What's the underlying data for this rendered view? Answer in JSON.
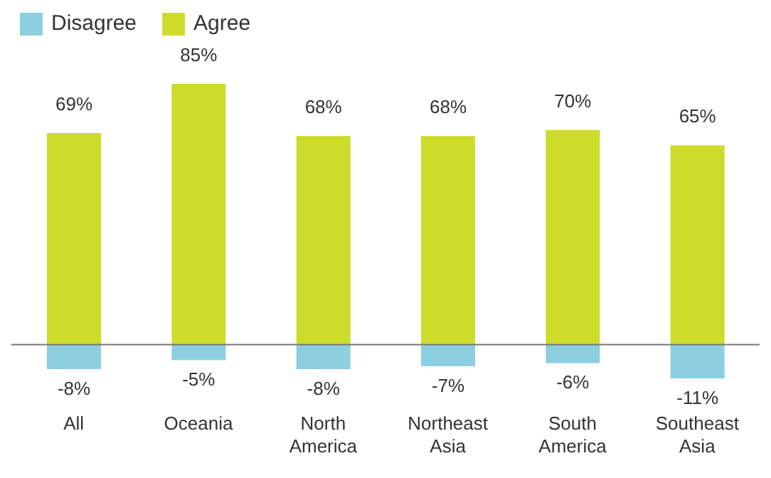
{
  "chart_data": {
    "type": "bar",
    "stacked": true,
    "legend": "top left",
    "categories": [
      "All",
      "Oceania",
      "North America",
      "Northeast Asia",
      "South America",
      "Southeast Asia"
    ],
    "series": [
      {
        "name": "Disagree",
        "color": "#8ccfe0",
        "values": [
          -8,
          -5,
          -8,
          -7,
          -6,
          -11
        ],
        "value_labels": [
          "-8%",
          "-5%",
          "-8%",
          "-7%",
          "-6%",
          "-11%"
        ]
      },
      {
        "name": "Agree",
        "color": "#cddc2a",
        "values": [
          69,
          85,
          68,
          68,
          70,
          65
        ],
        "value_labels": [
          "69%",
          "85%",
          "68%",
          "68%",
          "70%",
          "65%"
        ]
      }
    ]
  }
}
